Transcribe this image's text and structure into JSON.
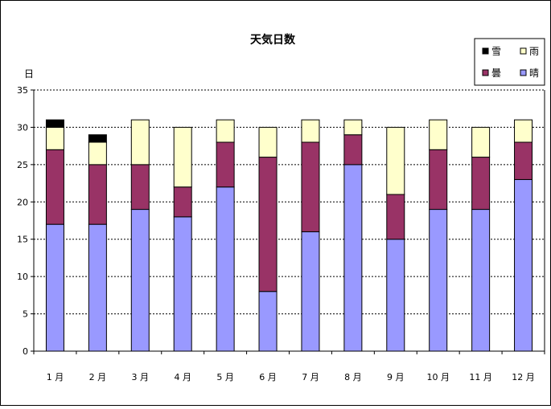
{
  "chart_data": {
    "type": "bar",
    "stacked": true,
    "title": "天気日数",
    "ylabel": "日",
    "xlabel": "",
    "ylim": [
      0,
      35
    ],
    "yticks": [
      0,
      5,
      10,
      15,
      20,
      25,
      30,
      35
    ],
    "grid": "horizontal-dashed",
    "legend_position": "top-right",
    "categories": [
      "1 月",
      "2 月",
      "3 月",
      "4 月",
      "5 月",
      "6 月",
      "7 月",
      "8 月",
      "9 月",
      "10 月",
      "11 月",
      "12 月"
    ],
    "series": [
      {
        "name": "晴",
        "color": "#9999ff",
        "values": [
          17,
          17,
          19,
          18,
          22,
          8,
          16,
          25,
          15,
          19,
          19,
          23
        ]
      },
      {
        "name": "曇",
        "color": "#993366",
        "values": [
          10,
          8,
          6,
          4,
          6,
          18,
          12,
          4,
          6,
          8,
          7,
          5
        ]
      },
      {
        "name": "雨",
        "color": "#ffffcc",
        "values": [
          3,
          3,
          6,
          8,
          3,
          4,
          3,
          2,
          9,
          4,
          4,
          3
        ]
      },
      {
        "name": "雪",
        "color": "#000000",
        "values": [
          1,
          1,
          0,
          0,
          0,
          0,
          0,
          0,
          0,
          0,
          0,
          0
        ]
      }
    ],
    "legend_order": [
      "雪",
      "雨",
      "曇",
      "晴"
    ]
  }
}
